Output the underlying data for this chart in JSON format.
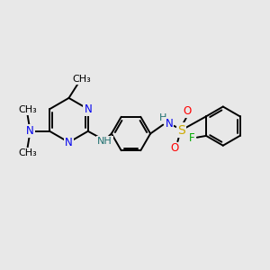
{
  "bg_color": "#e8e8e8",
  "bond_color": "#000000",
  "N_color": "#0000ee",
  "S_color": "#ccaa00",
  "O_color": "#ff0000",
  "F_color": "#00aa00",
  "H_color": "#207070",
  "font_size": 8.5,
  "bond_width": 1.4,
  "figsize": [
    3.0,
    3.0
  ],
  "dpi": 100,
  "xlim": [
    0,
    10
  ],
  "ylim": [
    0,
    10
  ]
}
